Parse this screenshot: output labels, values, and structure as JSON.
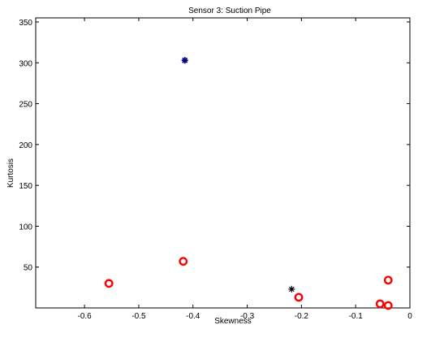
{
  "chart_data": {
    "type": "scatter",
    "title": "Sensor 3: Suction Pipe",
    "xlabel": "Skewness",
    "ylabel": "Kurtosis",
    "xlim": [
      -0.69,
      0.0
    ],
    "ylim": [
      0,
      355
    ],
    "xticks": [
      -0.6,
      -0.5,
      -0.4,
      -0.3,
      -0.2,
      -0.1,
      0
    ],
    "xtick_labels": [
      "-0.6",
      "-0.5",
      "-0.4",
      "-0.3",
      "-0.2",
      "-0.1",
      "0"
    ],
    "yticks": [
      50,
      100,
      150,
      200,
      250,
      300,
      350
    ],
    "ytick_labels": [
      "50",
      "100",
      "150",
      "200",
      "250",
      "300",
      "350"
    ],
    "grid": false,
    "series": [
      {
        "marker": "circle",
        "color": "#ff0000",
        "points": [
          {
            "x": -0.555,
            "y": 30
          },
          {
            "x": -0.418,
            "y": 57
          },
          {
            "x": -0.205,
            "y": 13
          },
          {
            "x": -0.055,
            "y": 5
          },
          {
            "x": -0.04,
            "y": 34
          },
          {
            "x": -0.04,
            "y": 3
          }
        ]
      },
      {
        "marker": "asterisk",
        "color": "#000080",
        "points": [
          {
            "x": -0.415,
            "y": 303
          }
        ]
      },
      {
        "marker": "asterisk",
        "color": "#000000",
        "points": [
          {
            "x": -0.218,
            "y": 23
          }
        ]
      }
    ]
  }
}
